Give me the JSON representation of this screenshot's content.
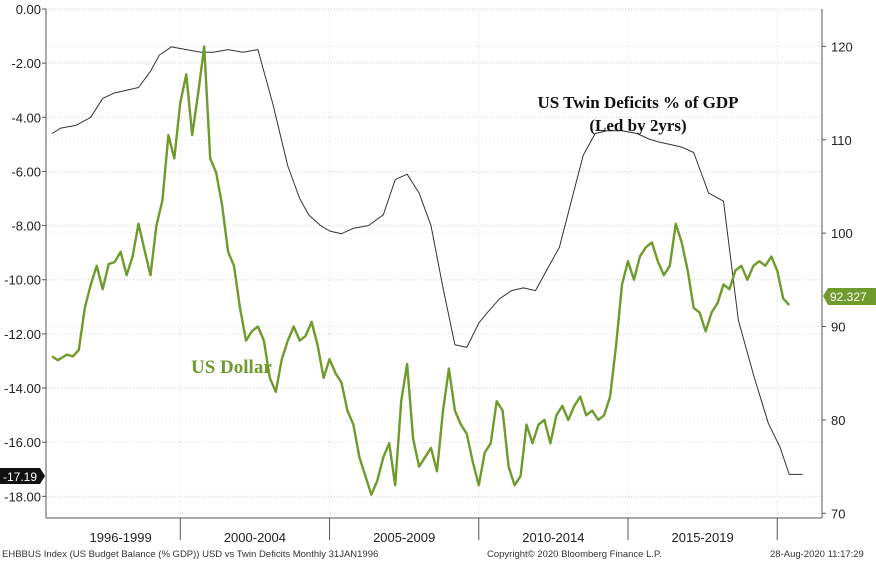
{
  "chart_data": {
    "type": "line",
    "annotation_title": "US Twin Deficits % of GDP",
    "annotation_subtitle": "(Led by 2yrs)",
    "dollar_label": "US Dollar",
    "left_axis": {
      "ticks": [
        "0.00",
        "-2.00",
        "-4.00",
        "-6.00",
        "-8.00",
        "-10.00",
        "-12.00",
        "-14.00",
        "-16.00",
        "-18.00"
      ],
      "ylim": [
        -18.8,
        0
      ]
    },
    "right_axis": {
      "ticks": [
        "120",
        "110",
        "100",
        "90",
        "80",
        "70"
      ],
      "ylim": [
        69.5,
        124
      ]
    },
    "xlim": [
      1995.5,
      2021.5
    ],
    "x_categories": [
      {
        "label": "1996-1999",
        "center": 1998.0
      },
      {
        "label": "2000-2004",
        "center": 2002.5
      },
      {
        "label": "2005-2009",
        "center": 2007.5
      },
      {
        "label": "2010-2014",
        "center": 2012.5
      },
      {
        "label": "2015-2019",
        "center": 2017.5
      }
    ],
    "x_separators": [
      2000.0,
      2005.0,
      2010.0,
      2015.0,
      2020.0
    ],
    "last_left_value": "-17.19",
    "last_right_value": "92.327",
    "series": [
      {
        "name": "US Twin Deficits % of GDP",
        "axis": "left",
        "color": "#333333",
        "x": [
          1995.7,
          1996.0,
          1996.5,
          1997.0,
          1997.4,
          1997.8,
          1998.2,
          1998.6,
          1999.0,
          1999.3,
          1999.7,
          2000.2,
          2000.7,
          2001.1,
          2001.6,
          2002.1,
          2002.6,
          2003.1,
          2003.6,
          2004.0,
          2004.3,
          2004.7,
          2005.0,
          2005.4,
          2005.8,
          2006.3,
          2006.8,
          2007.2,
          2007.6,
          2008.0,
          2008.4,
          2008.8,
          2009.2,
          2009.6,
          2010.0,
          2010.3,
          2010.7,
          2011.1,
          2011.5,
          2011.9,
          2012.3,
          2012.7,
          2013.1,
          2013.5,
          2013.9,
          2014.3,
          2014.8,
          2015.3,
          2015.7,
          2016.0,
          2016.4,
          2016.8,
          2017.2,
          2017.7,
          2018.2,
          2018.7,
          2019.2,
          2019.7,
          2020.1,
          2020.4,
          2020.6,
          2020.75,
          2020.85
        ],
        "y": [
          -4.6,
          -4.4,
          -4.3,
          -4.0,
          -3.3,
          -3.1,
          -3.0,
          -2.9,
          -2.3,
          -1.7,
          -1.4,
          -1.5,
          -1.6,
          -1.6,
          -1.5,
          -1.6,
          -1.5,
          -3.5,
          -5.8,
          -7.0,
          -7.6,
          -8.0,
          -8.2,
          -8.3,
          -8.1,
          -8.0,
          -7.6,
          -6.3,
          -6.1,
          -6.8,
          -8.0,
          -10.3,
          -12.4,
          -12.5,
          -11.6,
          -11.2,
          -10.7,
          -10.4,
          -10.3,
          -10.4,
          -9.6,
          -8.8,
          -7.1,
          -5.4,
          -4.6,
          -4.5,
          -4.5,
          -4.6,
          -4.8,
          -4.9,
          -5.0,
          -5.1,
          -5.3,
          -6.8,
          -7.1,
          -11.5,
          -13.5,
          -15.3,
          -16.2,
          -17.19,
          -17.19,
          -17.19,
          -17.19
        ]
      },
      {
        "name": "US Dollar",
        "axis": "right",
        "color": "#6f9a2c",
        "x": [
          1995.7,
          1995.9,
          1996.2,
          1996.4,
          1996.6,
          1996.8,
          1997.0,
          1997.2,
          1997.4,
          1997.6,
          1997.8,
          1998.0,
          1998.2,
          1998.4,
          1998.6,
          1998.8,
          1999.0,
          1999.2,
          1999.4,
          1999.6,
          1999.8,
          2000.0,
          2000.2,
          2000.4,
          2000.6,
          2000.8,
          2001.0,
          2001.2,
          2001.4,
          2001.6,
          2001.8,
          2002.0,
          2002.2,
          2002.4,
          2002.6,
          2002.8,
          2003.0,
          2003.2,
          2003.4,
          2003.6,
          2003.8,
          2004.0,
          2004.2,
          2004.4,
          2004.6,
          2004.8,
          2005.0,
          2005.2,
          2005.4,
          2005.6,
          2005.8,
          2006.0,
          2006.2,
          2006.4,
          2006.6,
          2006.8,
          2007.0,
          2007.2,
          2007.4,
          2007.6,
          2007.8,
          2008.0,
          2008.2,
          2008.4,
          2008.6,
          2008.8,
          2009.0,
          2009.2,
          2009.4,
          2009.6,
          2009.8,
          2010.0,
          2010.2,
          2010.4,
          2010.6,
          2010.8,
          2011.0,
          2011.2,
          2011.4,
          2011.6,
          2011.8,
          2012.0,
          2012.2,
          2012.4,
          2012.6,
          2012.8,
          2013.0,
          2013.2,
          2013.4,
          2013.6,
          2013.8,
          2014.0,
          2014.2,
          2014.4,
          2014.6,
          2014.8,
          2015.0,
          2015.2,
          2015.4,
          2015.6,
          2015.8,
          2016.0,
          2016.2,
          2016.4,
          2016.6,
          2016.8,
          2017.0,
          2017.2,
          2017.4,
          2017.6,
          2017.8,
          2018.0,
          2018.2,
          2018.4,
          2018.6,
          2018.8,
          2019.0,
          2019.2,
          2019.4,
          2019.6,
          2019.8,
          2020.0,
          2020.2,
          2020.4
        ],
        "y": [
          86.8,
          86.4,
          87.0,
          86.8,
          87.5,
          92.0,
          94.5,
          96.5,
          94.0,
          96.7,
          96.9,
          98.0,
          95.5,
          97.5,
          101.0,
          98.2,
          95.5,
          100.8,
          103.5,
          110.5,
          108.0,
          114.0,
          117.0,
          110.5,
          115.0,
          120.0,
          108.0,
          106.5,
          103.0,
          98.0,
          96.5,
          92.0,
          88.5,
          89.5,
          90.0,
          88.5,
          84.5,
          83.0,
          86.5,
          88.5,
          90.0,
          88.5,
          89.0,
          90.5,
          88.0,
          84.5,
          86.5,
          85.0,
          84.0,
          81.0,
          79.5,
          76.0,
          74.0,
          72.0,
          73.5,
          76.0,
          77.5,
          73.0,
          82.0,
          86.0,
          78.0,
          75.0,
          76.0,
          77.0,
          74.5,
          81.0,
          85.5,
          81.0,
          79.5,
          78.5,
          75.5,
          73.0,
          76.5,
          77.5,
          82.0,
          81.0,
          75.0,
          73.0,
          74.0,
          79.5,
          77.5,
          79.5,
          80.0,
          77.5,
          80.5,
          81.5,
          80.0,
          81.5,
          82.5,
          80.5,
          81.0,
          80.0,
          80.5,
          82.5,
          88.0,
          94.5,
          97.0,
          95.0,
          97.5,
          98.5,
          99.0,
          97.0,
          95.5,
          96.5,
          101.0,
          99.0,
          96.0,
          92.0,
          91.5,
          89.5,
          91.5,
          92.5,
          94.5,
          94.0,
          96.0,
          96.5,
          95.0,
          96.5,
          97.0,
          96.5,
          97.5,
          96.0,
          93.0,
          92.3
        ]
      }
    ]
  },
  "footer": {
    "left": "EHBBUS Index (US Budget Balance (% GDP)) USD vs Twin Deficits  Monthly 31JAN1996",
    "center": "Copyright© 2020 Bloomberg Finance L.P.",
    "right": "28-Aug-2020 11:17:29"
  }
}
